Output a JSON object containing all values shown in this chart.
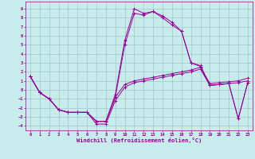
{
  "background_color": "#c8ecec",
  "grid_color": "#a0c8c8",
  "line_color": "#990099",
  "xlabel": "Windchill (Refroidissement éolien,°C)",
  "xlim": [
    -0.5,
    23.5
  ],
  "ylim": [
    -4.5,
    9.8
  ],
  "xticks": [
    0,
    1,
    2,
    3,
    4,
    5,
    6,
    7,
    8,
    9,
    10,
    11,
    12,
    13,
    14,
    15,
    16,
    17,
    18,
    19,
    20,
    21,
    22,
    23
  ],
  "yticks": [
    -4,
    -3,
    -2,
    -1,
    0,
    1,
    2,
    3,
    4,
    5,
    6,
    7,
    8,
    9
  ],
  "curve_A": [
    1.5,
    -0.3,
    -1.0,
    -2.2,
    -2.5,
    -2.5,
    -2.5,
    -3.5,
    -3.5,
    -0.5,
    5.5,
    9.0,
    8.5,
    8.7,
    8.2,
    7.5,
    6.5,
    3.0,
    2.7,
    0.5,
    0.6,
    0.7,
    -3.2,
    0.8
  ],
  "curve_B": [
    1.5,
    -0.3,
    -1.0,
    -2.2,
    -2.5,
    -2.5,
    -2.5,
    -3.5,
    -3.5,
    -0.8,
    5.0,
    8.5,
    8.3,
    8.7,
    8.0,
    7.2,
    6.5,
    3.0,
    2.6,
    0.5,
    0.6,
    0.7,
    -3.2,
    0.8
  ],
  "curve_C": [
    1.5,
    -0.3,
    -1.0,
    -2.2,
    -2.5,
    -2.5,
    -2.5,
    -3.8,
    -3.8,
    -1.2,
    0.3,
    0.8,
    1.0,
    1.2,
    1.4,
    1.6,
    1.8,
    2.0,
    2.3,
    0.5,
    0.6,
    0.7,
    0.8,
    1.0
  ],
  "curve_D": [
    1.5,
    -0.3,
    -1.0,
    -2.2,
    -2.5,
    -2.5,
    -2.5,
    -3.5,
    -3.5,
    -0.8,
    0.6,
    1.0,
    1.2,
    1.4,
    1.6,
    1.8,
    2.0,
    2.2,
    2.5,
    0.7,
    0.8,
    0.9,
    1.0,
    1.3
  ]
}
